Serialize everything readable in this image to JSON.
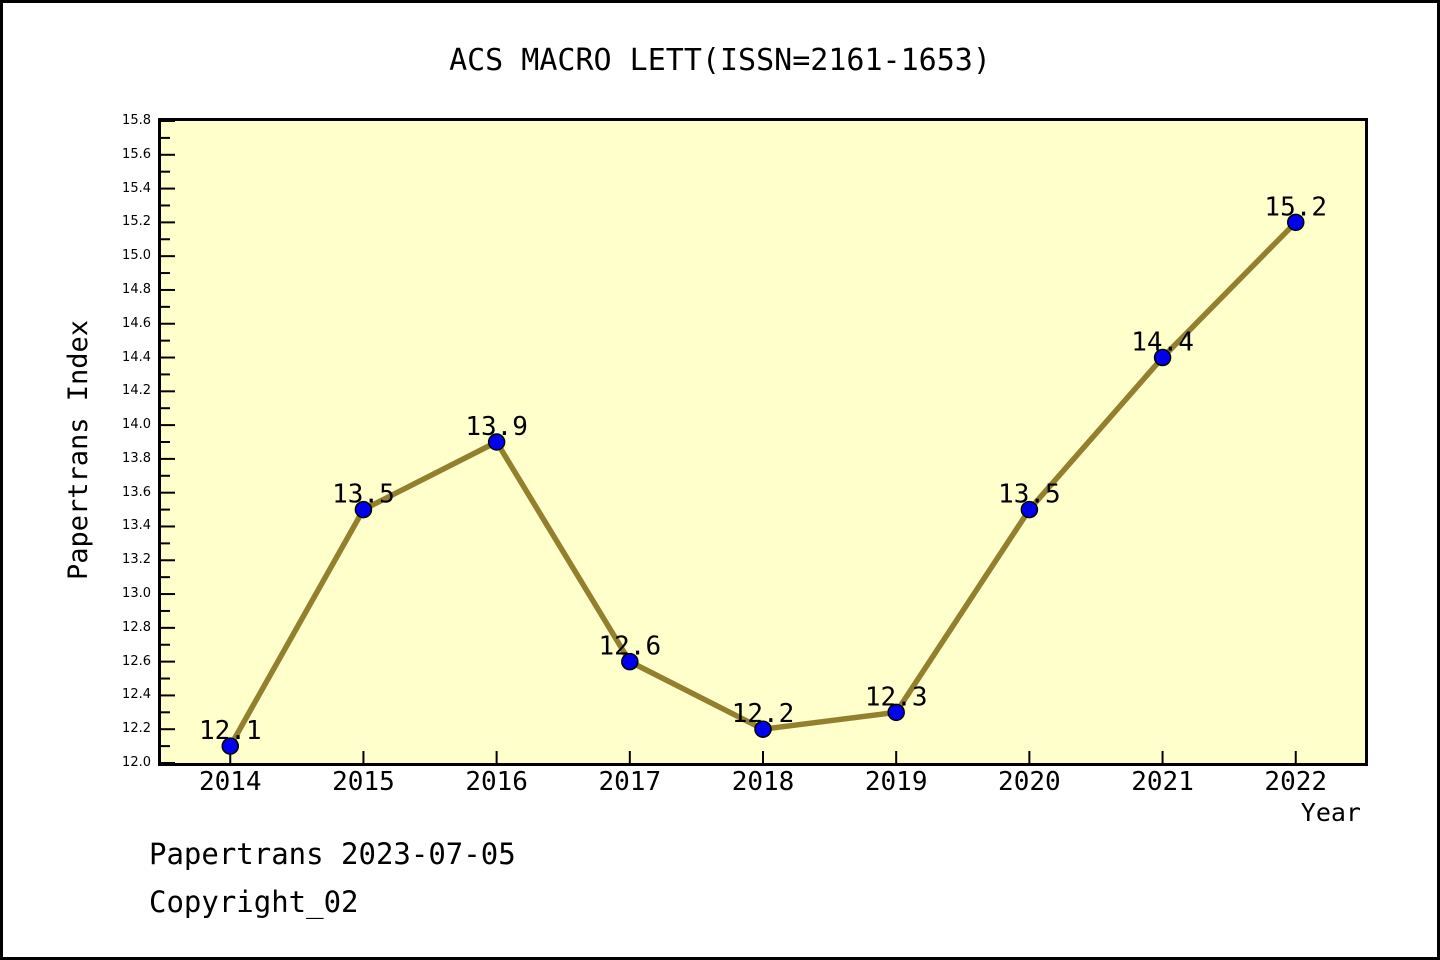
{
  "page": {
    "footer_line1": "Papertrans 2023-07-05",
    "footer_line2": "Copyright_02"
  },
  "chart_data": {
    "type": "line",
    "title": "ACS MACRO LETT(ISSN=2161-1653)",
    "xlabel": "Year",
    "ylabel": "Papertrans Index",
    "x": [
      2014,
      2015,
      2016,
      2017,
      2018,
      2019,
      2020,
      2021,
      2022
    ],
    "values": [
      12.1,
      13.5,
      13.9,
      12.6,
      12.2,
      12.3,
      13.5,
      14.4,
      15.2
    ],
    "point_labels": [
      "12.1",
      "13.5",
      "13.9",
      "12.6",
      "12.2",
      "12.3",
      "13.5",
      "14.4",
      "15.2"
    ],
    "xlim": [
      2013.48,
      2022.52
    ],
    "ylim": [
      12.0,
      15.8
    ],
    "ytick_step": 0.2,
    "ytick_minor_step": 0.1,
    "grid": false,
    "legend": false,
    "colors": {
      "line": "#93802e",
      "marker": "#0000ee",
      "marker_edge": "#000000",
      "plot_bg": "#ffffcc",
      "axis": "#000000",
      "text": "#000000"
    }
  }
}
